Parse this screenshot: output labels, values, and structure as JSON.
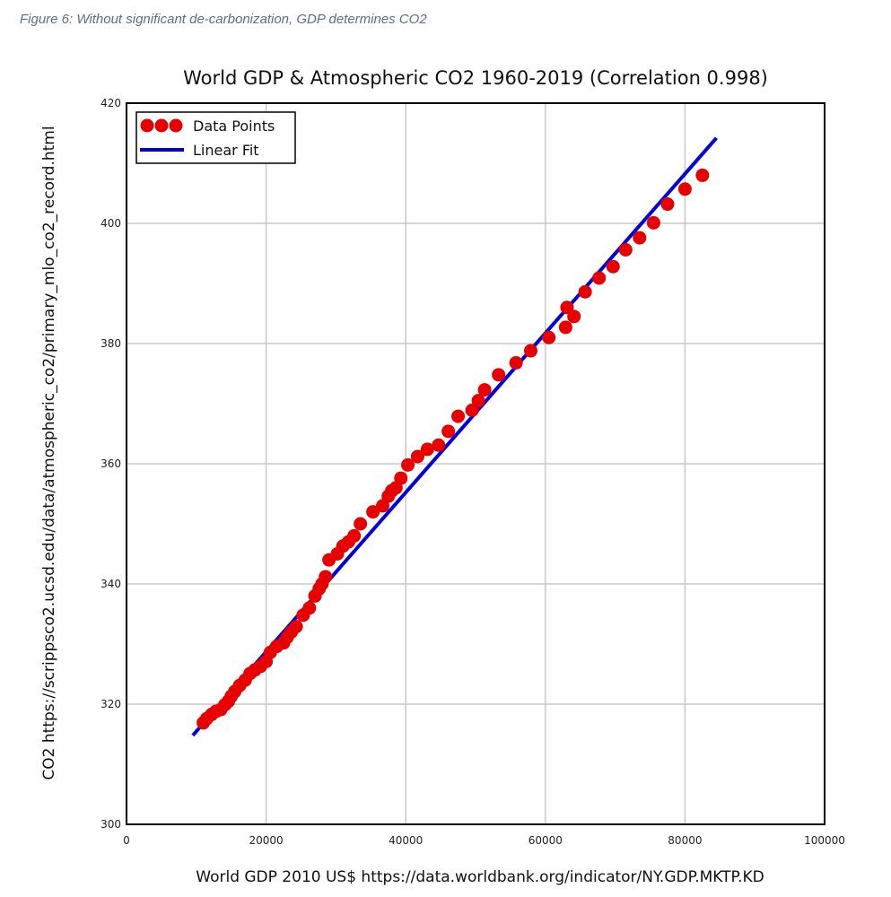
{
  "caption": "Figure 6: Without significant de-carbonization, GDP determines CO2",
  "colors": {
    "points": "#e60000",
    "fit": "#0000e0",
    "grid": "#c8c8c8"
  },
  "chart_data": {
    "type": "scatter",
    "title": "World GDP & Atmospheric CO2 1960-2019 (Correlation 0.998)",
    "xlabel": "World GDP 2010 US$ https://data.worldbank.org/indicator/NY.GDP.MKTP.KD",
    "ylabel": "CO2 https://scrippsco2.ucsd.edu/data/atmospheric_co2/primary_mlo_co2_record.html",
    "xlim": [
      0,
      100000
    ],
    "ylim": [
      300,
      420
    ],
    "xticks": [
      0,
      20000,
      40000,
      60000,
      80000,
      100000
    ],
    "xtick_labels": [
      "0",
      "20000",
      "40000",
      "60000",
      "80000",
      "100000"
    ],
    "yticks": [
      300,
      320,
      340,
      360,
      380,
      400,
      420
    ],
    "ytick_labels": [
      "300",
      "320",
      "340",
      "360",
      "380",
      "400",
      "420"
    ],
    "grid": true,
    "legend": {
      "position": "top-left",
      "entries": [
        "Data Points",
        "Linear Fit"
      ]
    },
    "series": [
      {
        "name": "Data Points",
        "kind": "scatter",
        "x": [
          11000,
          11500,
          12200,
          12800,
          13500,
          14100,
          14600,
          15000,
          15500,
          16200,
          17000,
          17700,
          18400,
          19200,
          20000,
          20600,
          21500,
          22500,
          23000,
          23600,
          24300,
          25300,
          26200,
          27000,
          27600,
          28000,
          28500,
          29000,
          30200,
          31000,
          31800,
          32600,
          33500,
          35300,
          36700,
          37500,
          38000,
          38600,
          39300,
          40300,
          41700,
          43100,
          44700,
          46100,
          47500,
          49500,
          50400,
          51300,
          53300,
          55800,
          57900,
          60500,
          62900,
          63100,
          64100,
          65700,
          67700,
          69700,
          71500,
          73500,
          75500,
          77500,
          80000,
          82500
        ],
        "y": [
          316.9,
          317.6,
          318.3,
          318.8,
          319.1,
          319.9,
          320.5,
          321.3,
          322.1,
          323.1,
          324.0,
          325.1,
          325.7,
          326.3,
          327.1,
          328.6,
          329.6,
          330.2,
          331.1,
          332.0,
          332.9,
          334.8,
          336.0,
          338.0,
          339.2,
          340.0,
          341.2,
          344.0,
          345.0,
          346.3,
          347.0,
          348.0,
          350.0,
          352.0,
          353.0,
          354.6,
          355.5,
          356.0,
          357.6,
          359.8,
          361.2,
          362.4,
          363.1,
          365.4,
          367.9,
          368.9,
          370.5,
          372.3,
          374.8,
          376.8,
          378.8,
          381.0,
          382.7,
          386.0,
          384.5,
          388.6,
          390.9,
          392.8,
          395.6,
          397.6,
          400.1,
          403.2,
          405.7,
          408.0
        ]
      },
      {
        "name": "Linear Fit",
        "kind": "line",
        "x": [
          9500,
          84500
        ],
        "y": [
          314.8,
          414.2
        ]
      }
    ]
  }
}
